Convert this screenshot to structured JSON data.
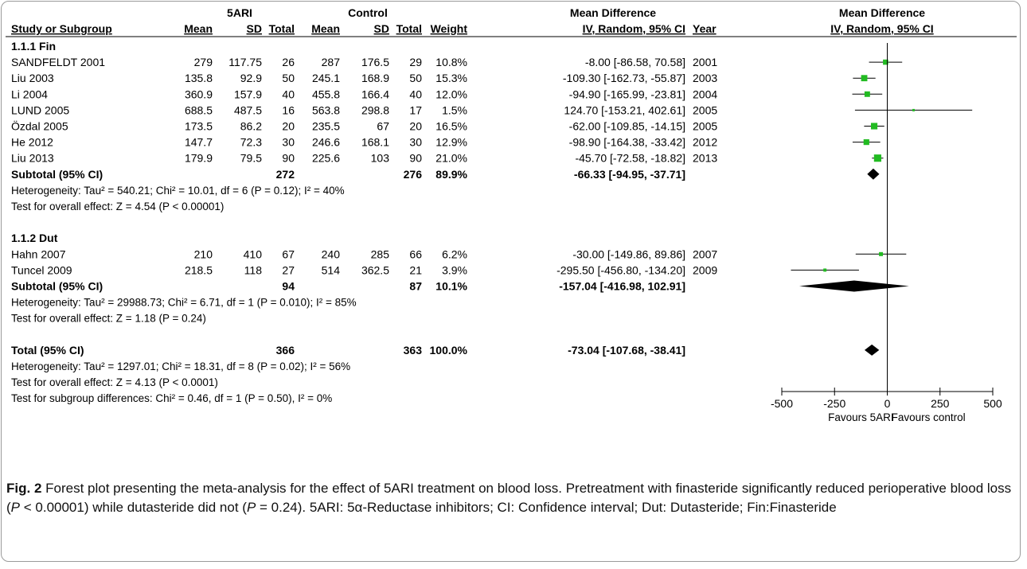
{
  "header": {
    "group1": "5ARI",
    "group2": "Control",
    "md_top": "Mean Difference",
    "md_sub": "IV, Random, 95% CI",
    "plot_top": "Mean Difference",
    "plot_sub": "IV, Random, 95% CI",
    "cols": {
      "study": "Study or Subgroup",
      "mean1": "Mean",
      "sd1": "SD",
      "total1": "Total",
      "mean2": "Mean",
      "sd2": "SD",
      "total2": "Total",
      "weight": "Weight",
      "year": "Year"
    }
  },
  "chart_data": {
    "type": "scatter",
    "subtype": "forest-plot",
    "title": "",
    "xlim": [
      -500,
      500
    ],
    "xticks": [
      -500,
      -250,
      0,
      250,
      500
    ],
    "favours_left": "Favours 5ARI",
    "favours_right": "Favours control",
    "rows": [
      {
        "kind": "group",
        "label": "1.1.1 Fin"
      },
      {
        "kind": "study",
        "label": "SANDFELDT 2001",
        "m1": "279",
        "sd1": "117.75",
        "n1": "26",
        "m2": "287",
        "sd2": "176.5",
        "n2": "29",
        "weight": "10.8%",
        "ci": "-8.00 [-86.58, 70.58]",
        "year": "2001",
        "est": -8.0,
        "lo": -86.58,
        "hi": 70.58,
        "w": 10.8
      },
      {
        "kind": "study",
        "label": "Liu 2003",
        "m1": "135.8",
        "sd1": "92.9",
        "n1": "50",
        "m2": "245.1",
        "sd2": "168.9",
        "n2": "50",
        "weight": "15.3%",
        "ci": "-109.30 [-162.73, -55.87]",
        "year": "2003",
        "est": -109.3,
        "lo": -162.73,
        "hi": -55.87,
        "w": 15.3
      },
      {
        "kind": "study",
        "label": "Li 2004",
        "m1": "360.9",
        "sd1": "157.9",
        "n1": "40",
        "m2": "455.8",
        "sd2": "166.4",
        "n2": "40",
        "weight": "12.0%",
        "ci": "-94.90 [-165.99, -23.81]",
        "year": "2004",
        "est": -94.9,
        "lo": -165.99,
        "hi": -23.81,
        "w": 12.0
      },
      {
        "kind": "study",
        "label": "LUND 2005",
        "m1": "688.5",
        "sd1": "487.5",
        "n1": "16",
        "m2": "563.8",
        "sd2": "298.8",
        "n2": "17",
        "weight": "1.5%",
        "ci": "124.70 [-153.21, 402.61]",
        "year": "2005",
        "est": 124.7,
        "lo": -153.21,
        "hi": 402.61,
        "w": 1.5
      },
      {
        "kind": "study",
        "label": "Özdal 2005",
        "m1": "173.5",
        "sd1": "86.2",
        "n1": "20",
        "m2": "235.5",
        "sd2": "67",
        "n2": "20",
        "weight": "16.5%",
        "ci": "-62.00 [-109.85, -14.15]",
        "year": "2005",
        "est": -62.0,
        "lo": -109.85,
        "hi": -14.15,
        "w": 16.5
      },
      {
        "kind": "study",
        "label": "He 2012",
        "m1": "147.7",
        "sd1": "72.3",
        "n1": "30",
        "m2": "246.6",
        "sd2": "168.1",
        "n2": "30",
        "weight": "12.9%",
        "ci": "-98.90 [-164.38, -33.42]",
        "year": "2012",
        "est": -98.9,
        "lo": -164.38,
        "hi": -33.42,
        "w": 12.9
      },
      {
        "kind": "study",
        "label": "Liu 2013",
        "m1": "179.9",
        "sd1": "79.5",
        "n1": "90",
        "m2": "225.6",
        "sd2": "103",
        "n2": "90",
        "weight": "21.0%",
        "ci": "-45.70 [-72.58, -18.82]",
        "year": "2013",
        "est": -45.7,
        "lo": -72.58,
        "hi": -18.82,
        "w": 21.0
      },
      {
        "kind": "subtotal",
        "label": "Subtotal (95% CI)",
        "n1": "272",
        "n2": "276",
        "weight": "89.9%",
        "ci": "-66.33 [-94.95, -37.71]",
        "est": -66.33,
        "lo": -94.95,
        "hi": -37.71
      },
      {
        "kind": "note",
        "label": "Heterogeneity: Tau² = 540.21; Chi² = 10.01, df = 6 (P = 0.12); I² = 40%"
      },
      {
        "kind": "note",
        "label": "Test for overall effect: Z = 4.54 (P < 0.00001)"
      },
      {
        "kind": "blank"
      },
      {
        "kind": "group",
        "label": "1.1.2 Dut"
      },
      {
        "kind": "study",
        "label": "Hahn 2007",
        "m1": "210",
        "sd1": "410",
        "n1": "67",
        "m2": "240",
        "sd2": "285",
        "n2": "66",
        "weight": "6.2%",
        "ci": "-30.00 [-149.86, 89.86]",
        "year": "2007",
        "est": -30.0,
        "lo": -149.86,
        "hi": 89.86,
        "w": 6.2
      },
      {
        "kind": "study",
        "label": "Tuncel 2009",
        "m1": "218.5",
        "sd1": "118",
        "n1": "27",
        "m2": "514",
        "sd2": "362.5",
        "n2": "21",
        "weight": "3.9%",
        "ci": "-295.50 [-456.80, -134.20]",
        "year": "2009",
        "est": -295.5,
        "lo": -456.8,
        "hi": -134.2,
        "w": 3.9
      },
      {
        "kind": "subtotal",
        "label": "Subtotal (95% CI)",
        "n1": "94",
        "n2": "87",
        "weight": "10.1%",
        "ci": "-157.04 [-416.98, 102.91]",
        "est": -157.04,
        "lo": -416.98,
        "hi": 102.91
      },
      {
        "kind": "note",
        "label": "Heterogeneity: Tau² = 29988.73; Chi² = 6.71, df = 1 (P = 0.010); I² = 85%"
      },
      {
        "kind": "note",
        "label": "Test for overall effect: Z = 1.18 (P = 0.24)"
      },
      {
        "kind": "blank"
      },
      {
        "kind": "total",
        "label": "Total (95% CI)",
        "n1": "366",
        "n2": "363",
        "weight": "100.0%",
        "ci": "-73.04 [-107.68, -38.41]",
        "est": -73.04,
        "lo": -107.68,
        "hi": -38.41
      },
      {
        "kind": "note",
        "label": "Heterogeneity: Tau² = 1297.01; Chi² = 18.31, df = 8 (P = 0.02); I² = 56%"
      },
      {
        "kind": "note",
        "label": "Test for overall effect: Z = 4.13 (P < 0.0001)"
      },
      {
        "kind": "note",
        "label": "Test for subgroup differences: Chi² = 0.46, df = 1 (P = 0.50), I² = 0%"
      }
    ]
  },
  "colors": {
    "marker": "#22bb22",
    "diamond": "#000000"
  },
  "caption": {
    "label": "Fig. 2",
    "part1": " Forest plot presenting the meta-analysis for the effect of 5ARI treatment on blood loss. Pretreatment with finasteride significantly reduced perioperative blood loss (",
    "p1": "P",
    "part2": " < 0.00001) while dutasteride did not (",
    "p2": "P",
    "part3": " = 0.24). 5ARI: 5α-Reductase inhibitors; CI: Confidence interval; Dut: Dutasteride; Fin:Finasteride"
  }
}
